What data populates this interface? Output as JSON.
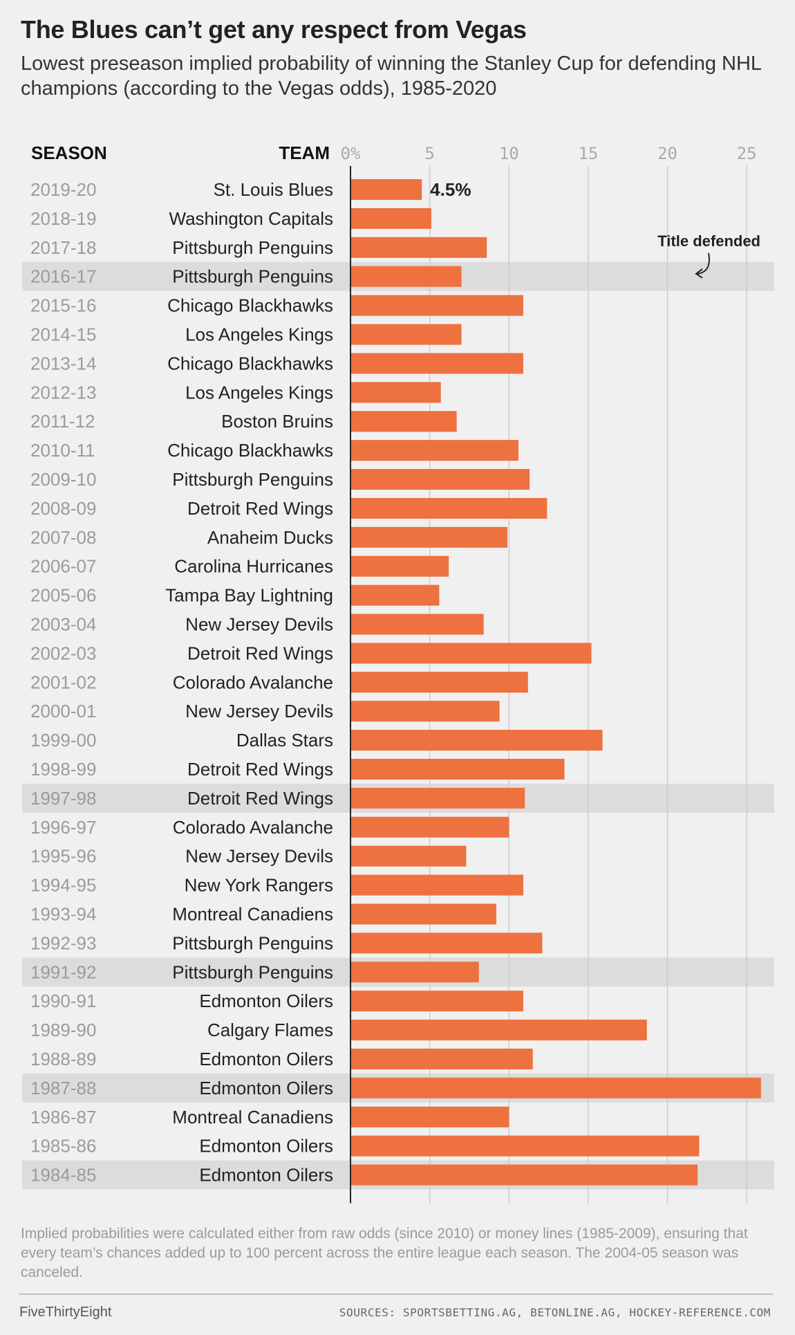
{
  "title": "The Blues can’t get any respect from Vegas",
  "subtitle": "Lowest preseason implied probability of winning the Stanley Cup for defending NHL champions (according to the Vegas odds), 1985-2020",
  "chart_data": {
    "type": "bar",
    "orientation": "horizontal",
    "column_headers": {
      "season": "SEASON",
      "team": "TEAM"
    },
    "x_ticks": [
      "0%",
      "5",
      "10",
      "15",
      "20",
      "25"
    ],
    "x_tick_values": [
      0,
      5,
      10,
      15,
      20,
      25
    ],
    "xlim": [
      0,
      26.3
    ],
    "grid": true,
    "bar_color": "#ee7140",
    "highlight_color": "#dcdcdc",
    "data_labels": {
      "2019-20": "4.5%"
    },
    "annotation": {
      "text": "Title defended"
    },
    "rows": [
      {
        "season": "2019-20",
        "team": "St. Louis Blues",
        "value": 4.5,
        "title_defended": false
      },
      {
        "season": "2018-19",
        "team": "Washington Capitals",
        "value": 5.1,
        "title_defended": false
      },
      {
        "season": "2017-18",
        "team": "Pittsburgh Penguins",
        "value": 8.6,
        "title_defended": false
      },
      {
        "season": "2016-17",
        "team": "Pittsburgh Penguins",
        "value": 7.0,
        "title_defended": true
      },
      {
        "season": "2015-16",
        "team": "Chicago Blackhawks",
        "value": 10.9,
        "title_defended": false
      },
      {
        "season": "2014-15",
        "team": "Los Angeles Kings",
        "value": 7.0,
        "title_defended": false
      },
      {
        "season": "2013-14",
        "team": "Chicago Blackhawks",
        "value": 10.9,
        "title_defended": false
      },
      {
        "season": "2012-13",
        "team": "Los Angeles Kings",
        "value": 5.7,
        "title_defended": false
      },
      {
        "season": "2011-12",
        "team": "Boston Bruins",
        "value": 6.7,
        "title_defended": false
      },
      {
        "season": "2010-11",
        "team": "Chicago Blackhawks",
        "value": 10.6,
        "title_defended": false
      },
      {
        "season": "2009-10",
        "team": "Pittsburgh Penguins",
        "value": 11.3,
        "title_defended": false
      },
      {
        "season": "2008-09",
        "team": "Detroit Red Wings",
        "value": 12.4,
        "title_defended": false
      },
      {
        "season": "2007-08",
        "team": "Anaheim Ducks",
        "value": 9.9,
        "title_defended": false
      },
      {
        "season": "2006-07",
        "team": "Carolina Hurricanes",
        "value": 6.2,
        "title_defended": false
      },
      {
        "season": "2005-06",
        "team": "Tampa Bay Lightning",
        "value": 5.6,
        "title_defended": false
      },
      {
        "season": "2003-04",
        "team": "New Jersey Devils",
        "value": 8.4,
        "title_defended": false
      },
      {
        "season": "2002-03",
        "team": "Detroit Red Wings",
        "value": 15.2,
        "title_defended": false
      },
      {
        "season": "2001-02",
        "team": "Colorado Avalanche",
        "value": 11.2,
        "title_defended": false
      },
      {
        "season": "2000-01",
        "team": "New Jersey Devils",
        "value": 9.4,
        "title_defended": false
      },
      {
        "season": "1999-00",
        "team": "Dallas Stars",
        "value": 15.9,
        "title_defended": false
      },
      {
        "season": "1998-99",
        "team": "Detroit Red Wings",
        "value": 13.5,
        "title_defended": false
      },
      {
        "season": "1997-98",
        "team": "Detroit Red Wings",
        "value": 11.0,
        "title_defended": true
      },
      {
        "season": "1996-97",
        "team": "Colorado Avalanche",
        "value": 10.0,
        "title_defended": false
      },
      {
        "season": "1995-96",
        "team": "New Jersey Devils",
        "value": 7.3,
        "title_defended": false
      },
      {
        "season": "1994-95",
        "team": "New York Rangers",
        "value": 10.9,
        "title_defended": false
      },
      {
        "season": "1993-94",
        "team": "Montreal Canadiens",
        "value": 9.2,
        "title_defended": false
      },
      {
        "season": "1992-93",
        "team": "Pittsburgh Penguins",
        "value": 12.1,
        "title_defended": false
      },
      {
        "season": "1991-92",
        "team": "Pittsburgh Penguins",
        "value": 8.1,
        "title_defended": true
      },
      {
        "season": "1990-91",
        "team": "Edmonton Oilers",
        "value": 10.9,
        "title_defended": false
      },
      {
        "season": "1989-90",
        "team": "Calgary Flames",
        "value": 18.7,
        "title_defended": false
      },
      {
        "season": "1988-89",
        "team": "Edmonton Oilers",
        "value": 11.5,
        "title_defended": false
      },
      {
        "season": "1987-88",
        "team": "Edmonton Oilers",
        "value": 25.9,
        "title_defended": true
      },
      {
        "season": "1986-87",
        "team": "Montreal Canadiens",
        "value": 10.0,
        "title_defended": false
      },
      {
        "season": "1985-86",
        "team": "Edmonton Oilers",
        "value": 22.0,
        "title_defended": false
      },
      {
        "season": "1984-85",
        "team": "Edmonton Oilers",
        "value": 21.9,
        "title_defended": true
      }
    ]
  },
  "footnote": "Implied probabilities were calculated either from raw odds (since 2010) or money lines (1985-2009), ensuring that every team’s chances added up to 100 percent across the entire league each season. The 2004-05 season was canceled.",
  "brand": "FiveThirtyEight",
  "sources": "SOURCES: SPORTSBETTING.AG, BETONLINE.AG, HOCKEY-REFERENCE.COM"
}
